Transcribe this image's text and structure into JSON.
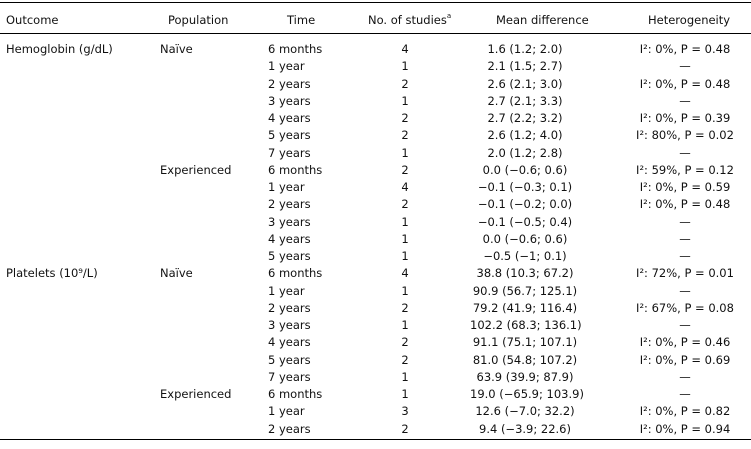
{
  "headers": {
    "outcome": "Outcome",
    "population": "Population",
    "time": "Time",
    "studies": "No. of studies",
    "studies_sup": "a",
    "mean_difference": "Mean difference",
    "heterogeneity": "Heterogeneity"
  },
  "rows": [
    {
      "outcome": "Hemoglobin (g/dL)",
      "population": "Naïve",
      "time": "6 months",
      "studies": "4",
      "md": "1.6 (1.2; 2.0)",
      "het": "I²: 0%, P = 0.48"
    },
    {
      "outcome": "",
      "population": "",
      "time": "1 year",
      "studies": "1",
      "md": "2.1 (1.5; 2.7)",
      "het": "—"
    },
    {
      "outcome": "",
      "population": "",
      "time": "2 years",
      "studies": "2",
      "md": "2.6 (2.1; 3.0)",
      "het": "I²: 0%, P = 0.48"
    },
    {
      "outcome": "",
      "population": "",
      "time": "3 years",
      "studies": "1",
      "md": "2.7 (2.1; 3.3)",
      "het": "—"
    },
    {
      "outcome": "",
      "population": "",
      "time": "4 years",
      "studies": "2",
      "md": "2.7 (2.2; 3.2)",
      "het": "I²: 0%, P = 0.39"
    },
    {
      "outcome": "",
      "population": "",
      "time": "5 years",
      "studies": "2",
      "md": "2.6 (1.2; 4.0)",
      "het": "I²: 80%, P = 0.02"
    },
    {
      "outcome": "",
      "population": "",
      "time": "7 years",
      "studies": "1",
      "md": "2.0 (1.2; 2.8)",
      "het": "—"
    },
    {
      "outcome": "",
      "population": "Experienced",
      "time": "6 months",
      "studies": "2",
      "md": "0.0 (−0.6; 0.6)",
      "het": "I²: 59%, P = 0.12"
    },
    {
      "outcome": "",
      "population": "",
      "time": "1 year",
      "studies": "4",
      "md": "−0.1 (−0.3; 0.1)",
      "het": "I²: 0%, P = 0.59"
    },
    {
      "outcome": "",
      "population": "",
      "time": "2 years",
      "studies": "2",
      "md": "−0.1 (−0.2; 0.0)",
      "het": "I²: 0%, P = 0.48"
    },
    {
      "outcome": "",
      "population": "",
      "time": "3 years",
      "studies": "1",
      "md": "−0.1 (−0.5; 0.4)",
      "het": "—"
    },
    {
      "outcome": "",
      "population": "",
      "time": "4 years",
      "studies": "1",
      "md": "0.0 (−0.6; 0.6)",
      "het": "—"
    },
    {
      "outcome": "",
      "population": "",
      "time": "5 years",
      "studies": "1",
      "md": "−0.5 (−1; 0.1)",
      "het": "—"
    },
    {
      "outcome": "Platelets (10⁹/L)",
      "population": "Naïve",
      "time": "6 months",
      "studies": "4",
      "md": "38.8 (10.3; 67.2)",
      "het": "I²: 72%, P = 0.01"
    },
    {
      "outcome": "",
      "population": "",
      "time": "1 year",
      "studies": "1",
      "md": "90.9 (56.7; 125.1)",
      "het": "—"
    },
    {
      "outcome": "",
      "population": "",
      "time": "2 years",
      "studies": "2",
      "md": "79.2 (41.9; 116.4)",
      "het": "I²: 67%, P = 0.08"
    },
    {
      "outcome": "",
      "population": "",
      "time": "3 years",
      "studies": "1",
      "md": "102.2 (68.3; 136.1)",
      "het": "—"
    },
    {
      "outcome": "",
      "population": "",
      "time": "4 years",
      "studies": "2",
      "md": "91.1 (75.1; 107.1)",
      "het": "I²: 0%, P = 0.46"
    },
    {
      "outcome": "",
      "population": "",
      "time": "5 years",
      "studies": "2",
      "md": "81.0 (54.8; 107.2)",
      "het": "I²: 0%, P = 0.69"
    },
    {
      "outcome": "",
      "population": "",
      "time": "7 years",
      "studies": "1",
      "md": "63.9 (39.9; 87.9)",
      "het": "—"
    },
    {
      "outcome": "",
      "population": "Experienced",
      "time": "6 months",
      "studies": "1",
      "md": "19.0 (−65.9; 103.9)",
      "het": "—"
    },
    {
      "outcome": "",
      "population": "",
      "time": "1 year",
      "studies": "3",
      "md": "12.6 (−7.0; 32.2)",
      "het": "I²: 0%, P = 0.82"
    },
    {
      "outcome": "",
      "population": "",
      "time": "2 years",
      "studies": "2",
      "md": "9.4 (−3.9; 22.6)",
      "het": "I²: 0%, P = 0.94"
    }
  ]
}
